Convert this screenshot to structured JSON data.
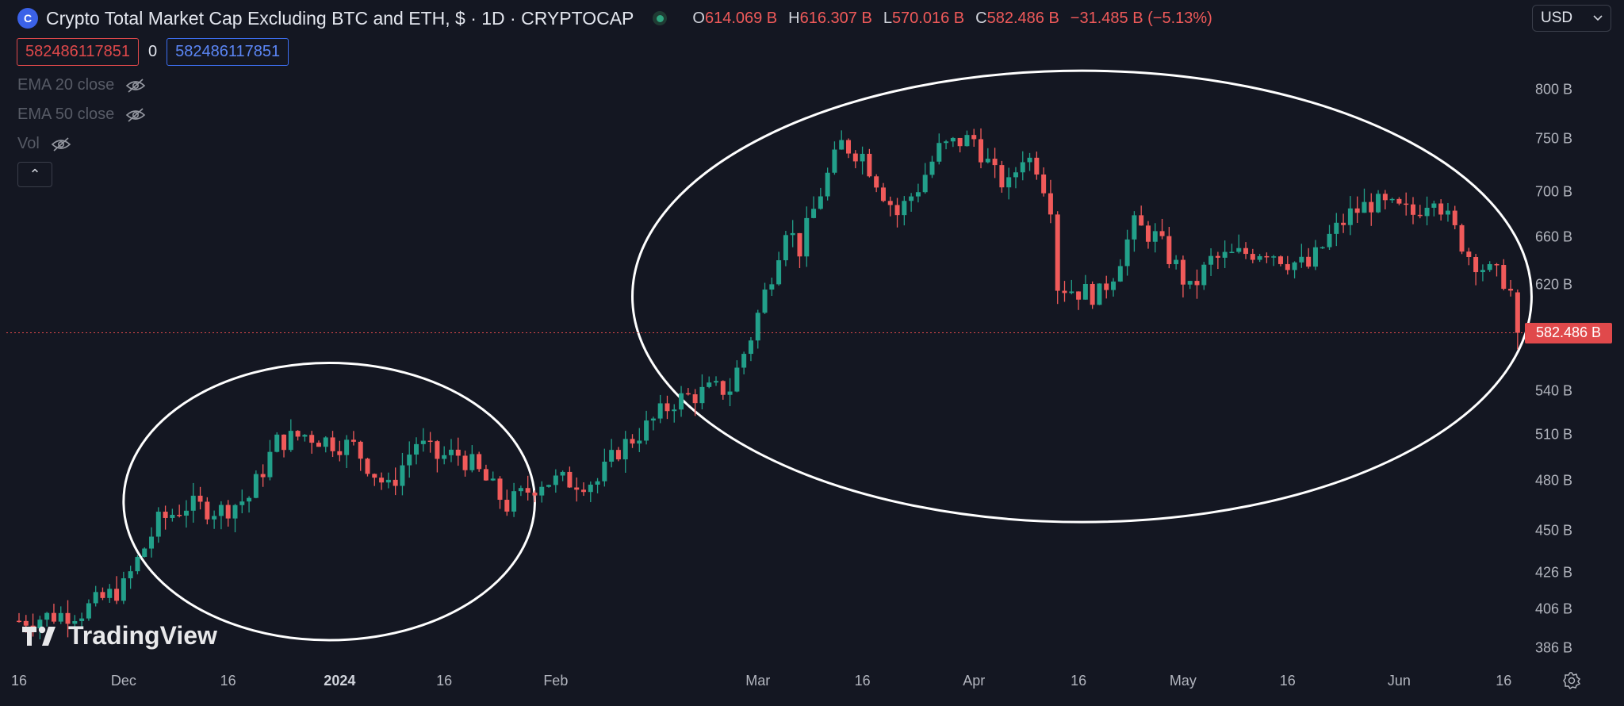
{
  "header": {
    "logo_glyph": "C",
    "title": "Crypto Total Market Cap Excluding BTC and ETH, $ · 1D · CRYPTOCAP",
    "ohlc": [
      {
        "key": "O",
        "value": "614.069 B"
      },
      {
        "key": "H",
        "value": "616.307 B"
      },
      {
        "key": "L",
        "value": "570.016 B"
      },
      {
        "key": "C",
        "value": "582.486 B"
      }
    ],
    "change": "−31.485 B (−5.13%)",
    "currency": "USD"
  },
  "inputs": {
    "left_value": "582486117851",
    "middle": "0",
    "right_value": "582486117851"
  },
  "indicators": [
    "EMA 20 close",
    "EMA 50 close",
    "Vol"
  ],
  "collapse_glyph": "⌃",
  "chart_data": {
    "type": "candlestick",
    "y_axis_labels": [
      "800 B",
      "750 B",
      "700 B",
      "660 B",
      "620 B",
      "540 B",
      "510 B",
      "480 B",
      "450 B",
      "426 B",
      "406 B",
      "386 B"
    ],
    "y_axis_values": [
      800,
      750,
      700,
      660,
      620,
      540,
      510,
      480,
      450,
      426,
      406,
      386
    ],
    "y_scale": "log",
    "current_price_label": "582.486 B",
    "current_price": 582.486,
    "x_axis_labels": [
      {
        "text": "16",
        "bold": false
      },
      {
        "text": "Dec",
        "bold": false
      },
      {
        "text": "16",
        "bold": false
      },
      {
        "text": "2024",
        "bold": true
      },
      {
        "text": "16",
        "bold": false
      },
      {
        "text": "Feb",
        "bold": false
      },
      {
        "text": "Mar",
        "bold": false
      },
      {
        "text": "16",
        "bold": false
      },
      {
        "text": "Apr",
        "bold": false
      },
      {
        "text": "16",
        "bold": false
      },
      {
        "text": "May",
        "bold": false
      },
      {
        "text": "16",
        "bold": false
      },
      {
        "text": "Jun",
        "bold": false
      },
      {
        "text": "16",
        "bold": false
      }
    ],
    "keypoints": [
      [
        "2023-11-16",
        400
      ],
      [
        "2023-11-25",
        405
      ],
      [
        "2023-12-01",
        418
      ],
      [
        "2023-12-06",
        455
      ],
      [
        "2023-12-10",
        465
      ],
      [
        "2023-12-15",
        462
      ],
      [
        "2023-12-19",
        470
      ],
      [
        "2023-12-23",
        505
      ],
      [
        "2023-12-27",
        510
      ],
      [
        "2023-12-31",
        505
      ],
      [
        "2024-01-03",
        502
      ],
      [
        "2024-01-06",
        485
      ],
      [
        "2024-01-08",
        475
      ],
      [
        "2024-01-10",
        490
      ],
      [
        "2024-01-12",
        505
      ],
      [
        "2024-01-15",
        495
      ],
      [
        "2024-01-18",
        497
      ],
      [
        "2024-01-20",
        490
      ],
      [
        "2024-01-23",
        475
      ],
      [
        "2024-01-25",
        465
      ],
      [
        "2024-01-30",
        480
      ],
      [
        "2024-02-03",
        480
      ],
      [
        "2024-02-07",
        480
      ],
      [
        "2024-02-10",
        500
      ],
      [
        "2024-02-14",
        515
      ],
      [
        "2024-02-18",
        533
      ],
      [
        "2024-02-23",
        540
      ],
      [
        "2024-02-26",
        542
      ],
      [
        "2024-02-29",
        580
      ],
      [
        "2024-03-03",
        630
      ],
      [
        "2024-03-05",
        670
      ],
      [
        "2024-03-07",
        650
      ],
      [
        "2024-03-10",
        700
      ],
      [
        "2024-03-13",
        745
      ],
      [
        "2024-03-16",
        735
      ],
      [
        "2024-03-19",
        700
      ],
      [
        "2024-03-21",
        680
      ],
      [
        "2024-03-24",
        705
      ],
      [
        "2024-03-27",
        740
      ],
      [
        "2024-03-30",
        748
      ],
      [
        "2024-04-01",
        750
      ],
      [
        "2024-04-04",
        715
      ],
      [
        "2024-04-06",
        705
      ],
      [
        "2024-04-08",
        735
      ],
      [
        "2024-04-10",
        725
      ],
      [
        "2024-04-12",
        690
      ],
      [
        "2024-04-13",
        620
      ],
      [
        "2024-04-16",
        615
      ],
      [
        "2024-04-19",
        612
      ],
      [
        "2024-04-21",
        630
      ],
      [
        "2024-04-24",
        670
      ],
      [
        "2024-04-27",
        660
      ],
      [
        "2024-04-30",
        635
      ],
      [
        "2024-05-02",
        615
      ],
      [
        "2024-05-05",
        640
      ],
      [
        "2024-05-09",
        645
      ],
      [
        "2024-05-13",
        650
      ],
      [
        "2024-05-16",
        640
      ],
      [
        "2024-05-19",
        635
      ],
      [
        "2024-05-22",
        660
      ],
      [
        "2024-05-25",
        680
      ],
      [
        "2024-05-28",
        690
      ],
      [
        "2024-05-31",
        685
      ],
      [
        "2024-06-03",
        680
      ],
      [
        "2024-06-06",
        700
      ],
      [
        "2024-06-08",
        675
      ],
      [
        "2024-06-11",
        645
      ],
      [
        "2024-06-14",
        630
      ],
      [
        "2024-06-16",
        625
      ],
      [
        "2024-06-17",
        614
      ],
      [
        "2024-06-18",
        582.486
      ]
    ],
    "annotations": [
      {
        "type": "ellipse",
        "from": "2023-12-01",
        "to": "2024-01-29",
        "top": 560,
        "bottom": 390
      },
      {
        "type": "ellipse",
        "from": "2024-02-12",
        "to": "2024-06-20",
        "top": 820,
        "bottom": 455
      }
    ]
  },
  "watermark": "TradingView",
  "colors": {
    "background": "#141722",
    "up": "#22a08a",
    "down": "#f05a5a",
    "ellipse": "#ffffff",
    "grid_line": "#e0494b"
  }
}
